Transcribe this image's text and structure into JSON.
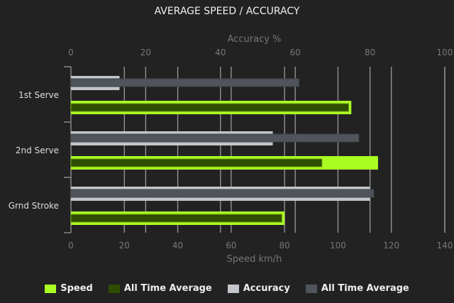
{
  "chart_data": {
    "type": "bar",
    "orientation": "horizontal",
    "title": "AVERAGE SPEED / ACCURACY",
    "categories": [
      "1st Serve",
      "2nd Serve",
      "Grnd Stroke"
    ],
    "x_bottom": {
      "label": "Speed km/h",
      "range": [
        0,
        140
      ],
      "ticks": [
        0,
        20,
        40,
        60,
        80,
        100,
        120,
        140
      ]
    },
    "x_top": {
      "label": "Accuracy %",
      "range": [
        0,
        100
      ],
      "ticks": [
        0,
        20,
        40,
        60,
        80,
        100
      ]
    },
    "grid": true,
    "legend_placement": "bottom",
    "series": [
      {
        "name": "Speed",
        "axis": "speed",
        "color": "#aaff22",
        "values": [
          105,
          115,
          80
        ]
      },
      {
        "name": "All Time Average",
        "axis": "speed",
        "color": "#2e4d00",
        "values": [
          104,
          94,
          79
        ]
      },
      {
        "name": "Accuracy",
        "axis": "accuracy",
        "color": "#c2c6ca",
        "values": [
          13,
          54,
          80
        ]
      },
      {
        "name": "All Time Average",
        "axis": "accuracy",
        "color": "#50555c",
        "values": [
          61,
          77,
          81
        ]
      }
    ]
  }
}
